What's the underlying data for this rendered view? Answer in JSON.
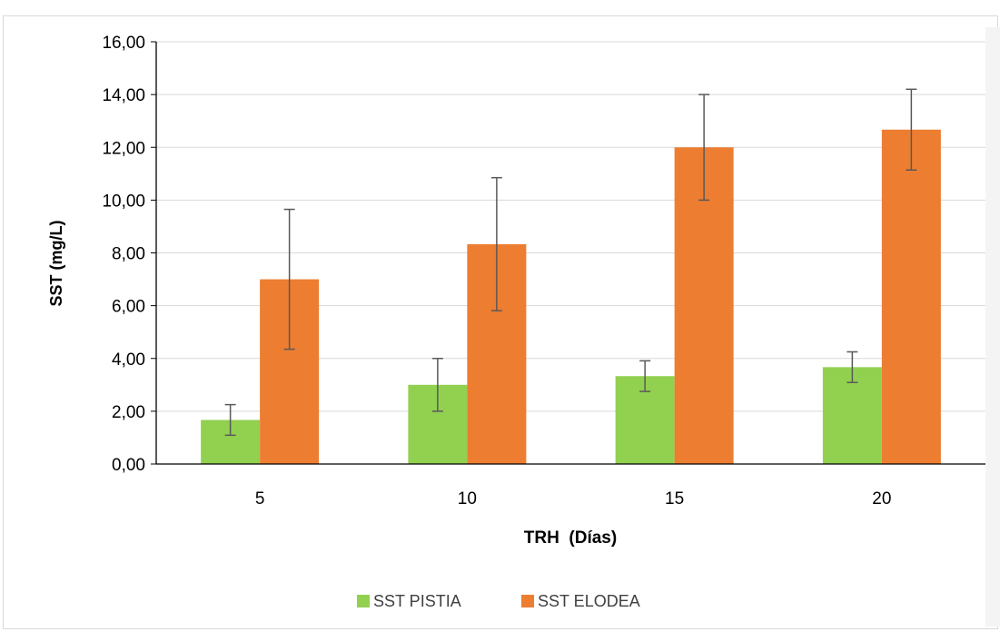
{
  "colors": {
    "pistia": "#92d050",
    "elodea": "#ed7d31",
    "grid": "#d9d9d9",
    "axis": "#000000",
    "error_bar": "#595959"
  },
  "chart_data": {
    "type": "bar",
    "title": "",
    "xlabel": "TRH  (Días)",
    "ylabel": "SST (mg/L)",
    "categories": [
      "5",
      "10",
      "15",
      "20"
    ],
    "ylim": [
      0,
      16
    ],
    "yticks": [
      0,
      2,
      4,
      6,
      8,
      10,
      12,
      14,
      16
    ],
    "ytick_labels": [
      "0,00",
      "2,00",
      "4,00",
      "6,00",
      "8,00",
      "10,00",
      "12,00",
      "14,00",
      "16,00"
    ],
    "grid": true,
    "legend_position": "bottom",
    "series": [
      {
        "name": "SST PISTIA",
        "values": [
          1.67,
          3.0,
          3.33,
          3.67
        ],
        "error": [
          0.58,
          1.0,
          0.58,
          0.58
        ]
      },
      {
        "name": "SST ELODEA",
        "values": [
          7.0,
          8.33,
          12.0,
          12.67
        ],
        "error": [
          2.65,
          2.52,
          2.0,
          1.53
        ]
      }
    ]
  }
}
